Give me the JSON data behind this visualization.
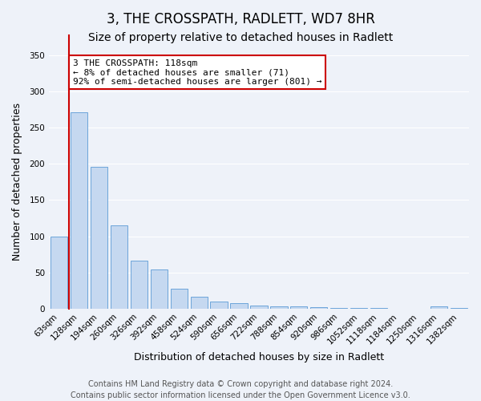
{
  "title": "3, THE CROSSPATH, RADLETT, WD7 8HR",
  "subtitle": "Size of property relative to detached houses in Radlett",
  "xlabel": "Distribution of detached houses by size in Radlett",
  "ylabel": "Number of detached properties",
  "bar_labels": [
    "63sqm",
    "128sqm",
    "194sqm",
    "260sqm",
    "326sqm",
    "392sqm",
    "458sqm",
    "524sqm",
    "590sqm",
    "656sqm",
    "722sqm",
    "788sqm",
    "854sqm",
    "920sqm",
    "986sqm",
    "1052sqm",
    "1118sqm",
    "1184sqm",
    "1250sqm",
    "1316sqm",
    "1382sqm"
  ],
  "bar_values": [
    100,
    271,
    196,
    115,
    66,
    54,
    27,
    16,
    10,
    7,
    4,
    3,
    3,
    2,
    1,
    1,
    1,
    0,
    0,
    3,
    1
  ],
  "bar_color": "#c5d8f0",
  "bar_edge_color": "#5b9bd5",
  "ylim": [
    0,
    350
  ],
  "yticks": [
    0,
    50,
    100,
    150,
    200,
    250,
    300,
    350
  ],
  "annotation_title": "3 THE CROSSPATH: 118sqm",
  "annotation_line1": "← 8% of detached houses are smaller (71)",
  "annotation_line2": "92% of semi-detached houses are larger (801) →",
  "annotation_box_facecolor": "#ffffff",
  "annotation_box_edgecolor": "#cc0000",
  "marker_line_color": "#cc0000",
  "footer_line1": "Contains HM Land Registry data © Crown copyright and database right 2024.",
  "footer_line2": "Contains public sector information licensed under the Open Government Licence v3.0.",
  "background_color": "#eef2f9",
  "grid_color": "#ffffff",
  "title_fontsize": 12,
  "subtitle_fontsize": 10,
  "axis_label_fontsize": 9,
  "tick_fontsize": 7.5,
  "annotation_fontsize": 8,
  "footer_fontsize": 7
}
